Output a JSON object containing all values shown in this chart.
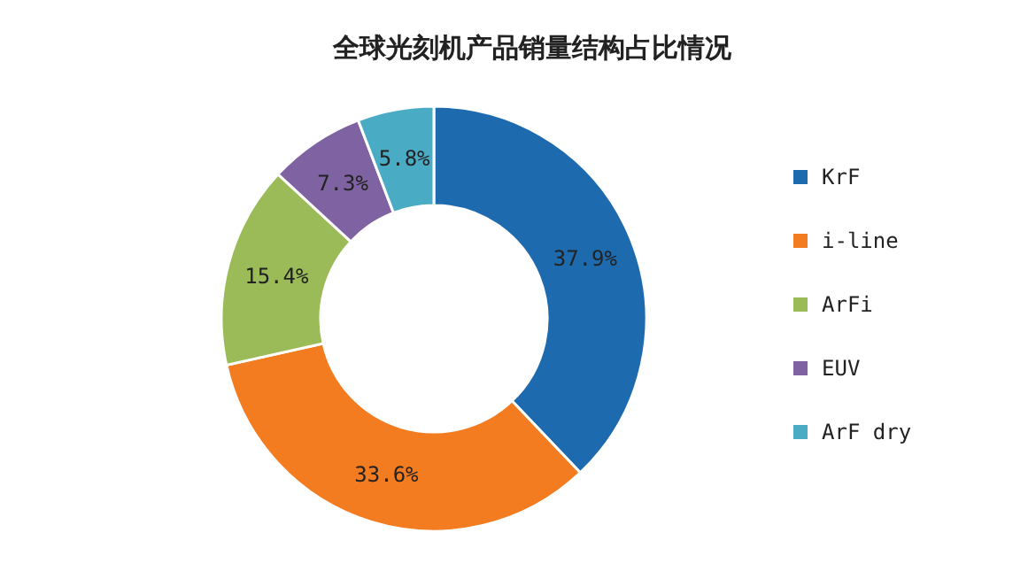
{
  "chart_data": {
    "type": "donut",
    "title": "全球光刻机产品销量结构占比情况",
    "categories": [
      "KrF",
      "i-line",
      "ArFi",
      "EUV",
      "ArF dry"
    ],
    "values": [
      37.9,
      33.6,
      15.4,
      7.3,
      5.8
    ],
    "colors": [
      "#1e6aae",
      "#f47c20",
      "#9bbb59",
      "#7f62a1",
      "#4aabc5"
    ],
    "value_labels": [
      "37.9%",
      "33.6%",
      "15.4%",
      "7.3%",
      "5.8%"
    ],
    "legend": "right"
  }
}
